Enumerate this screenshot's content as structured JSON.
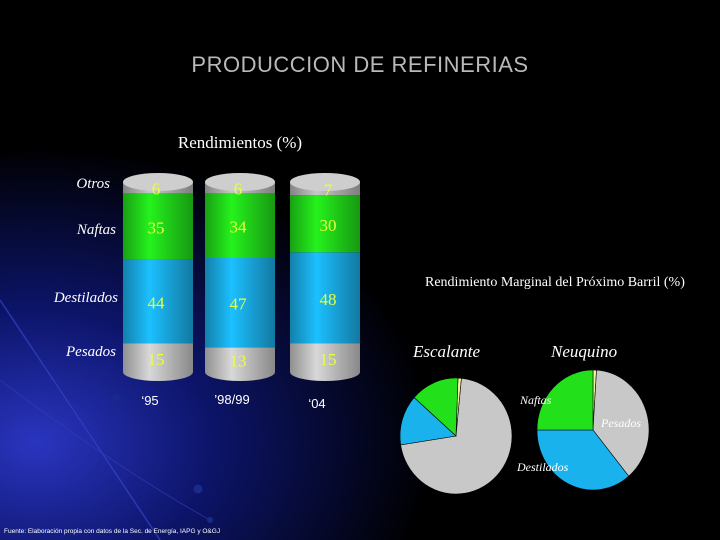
{
  "page_title": "PRODUCCION DE REFINERIAS",
  "source_note": "Fuente: Elaboración propia con datos de la Sec. de Energía, IAPG y O&GJ",
  "colors": {
    "otros": "#b8b8b8",
    "naftas": "#22e01a",
    "destilados": "#1ab2ec",
    "pesados": "#c8c8c8",
    "value_text": "#eaff3a",
    "background": "#000000"
  },
  "chart_data": [
    {
      "type": "bar",
      "stacked": true,
      "title": "Rendimientos (%)",
      "categories": [
        "‘95",
        "’98/99",
        "‘04"
      ],
      "series": [
        {
          "name": "Pesados",
          "values": [
            15,
            13,
            15
          ]
        },
        {
          "name": "Destilados",
          "values": [
            44,
            47,
            48
          ]
        },
        {
          "name": "Naftas",
          "values": [
            35,
            34,
            30
          ]
        },
        {
          "name": "Otros",
          "values": [
            6,
            6,
            7
          ]
        }
      ]
    },
    {
      "type": "pie",
      "title": "Rendimiento Marginal del Próximo Barril (%)",
      "pies": [
        {
          "name": "Escalante",
          "slices": [
            {
              "label": "Naftas",
              "value": 14
            },
            {
              "label": "Destilados",
              "value": 14
            },
            {
              "label": "Pesados",
              "value": 71
            },
            {
              "label": "Otros",
              "value": 1
            }
          ]
        },
        {
          "name": "Neuquino",
          "slices": [
            {
              "label": "Naftas",
              "value": 25
            },
            {
              "label": "Pesados",
              "value": 38
            },
            {
              "label": "Destilados",
              "value": 36
            },
            {
              "label": "Otros",
              "value": 1
            }
          ]
        }
      ],
      "slice_labels": [
        "Naftas",
        "Pesados",
        "Destilados"
      ]
    }
  ]
}
